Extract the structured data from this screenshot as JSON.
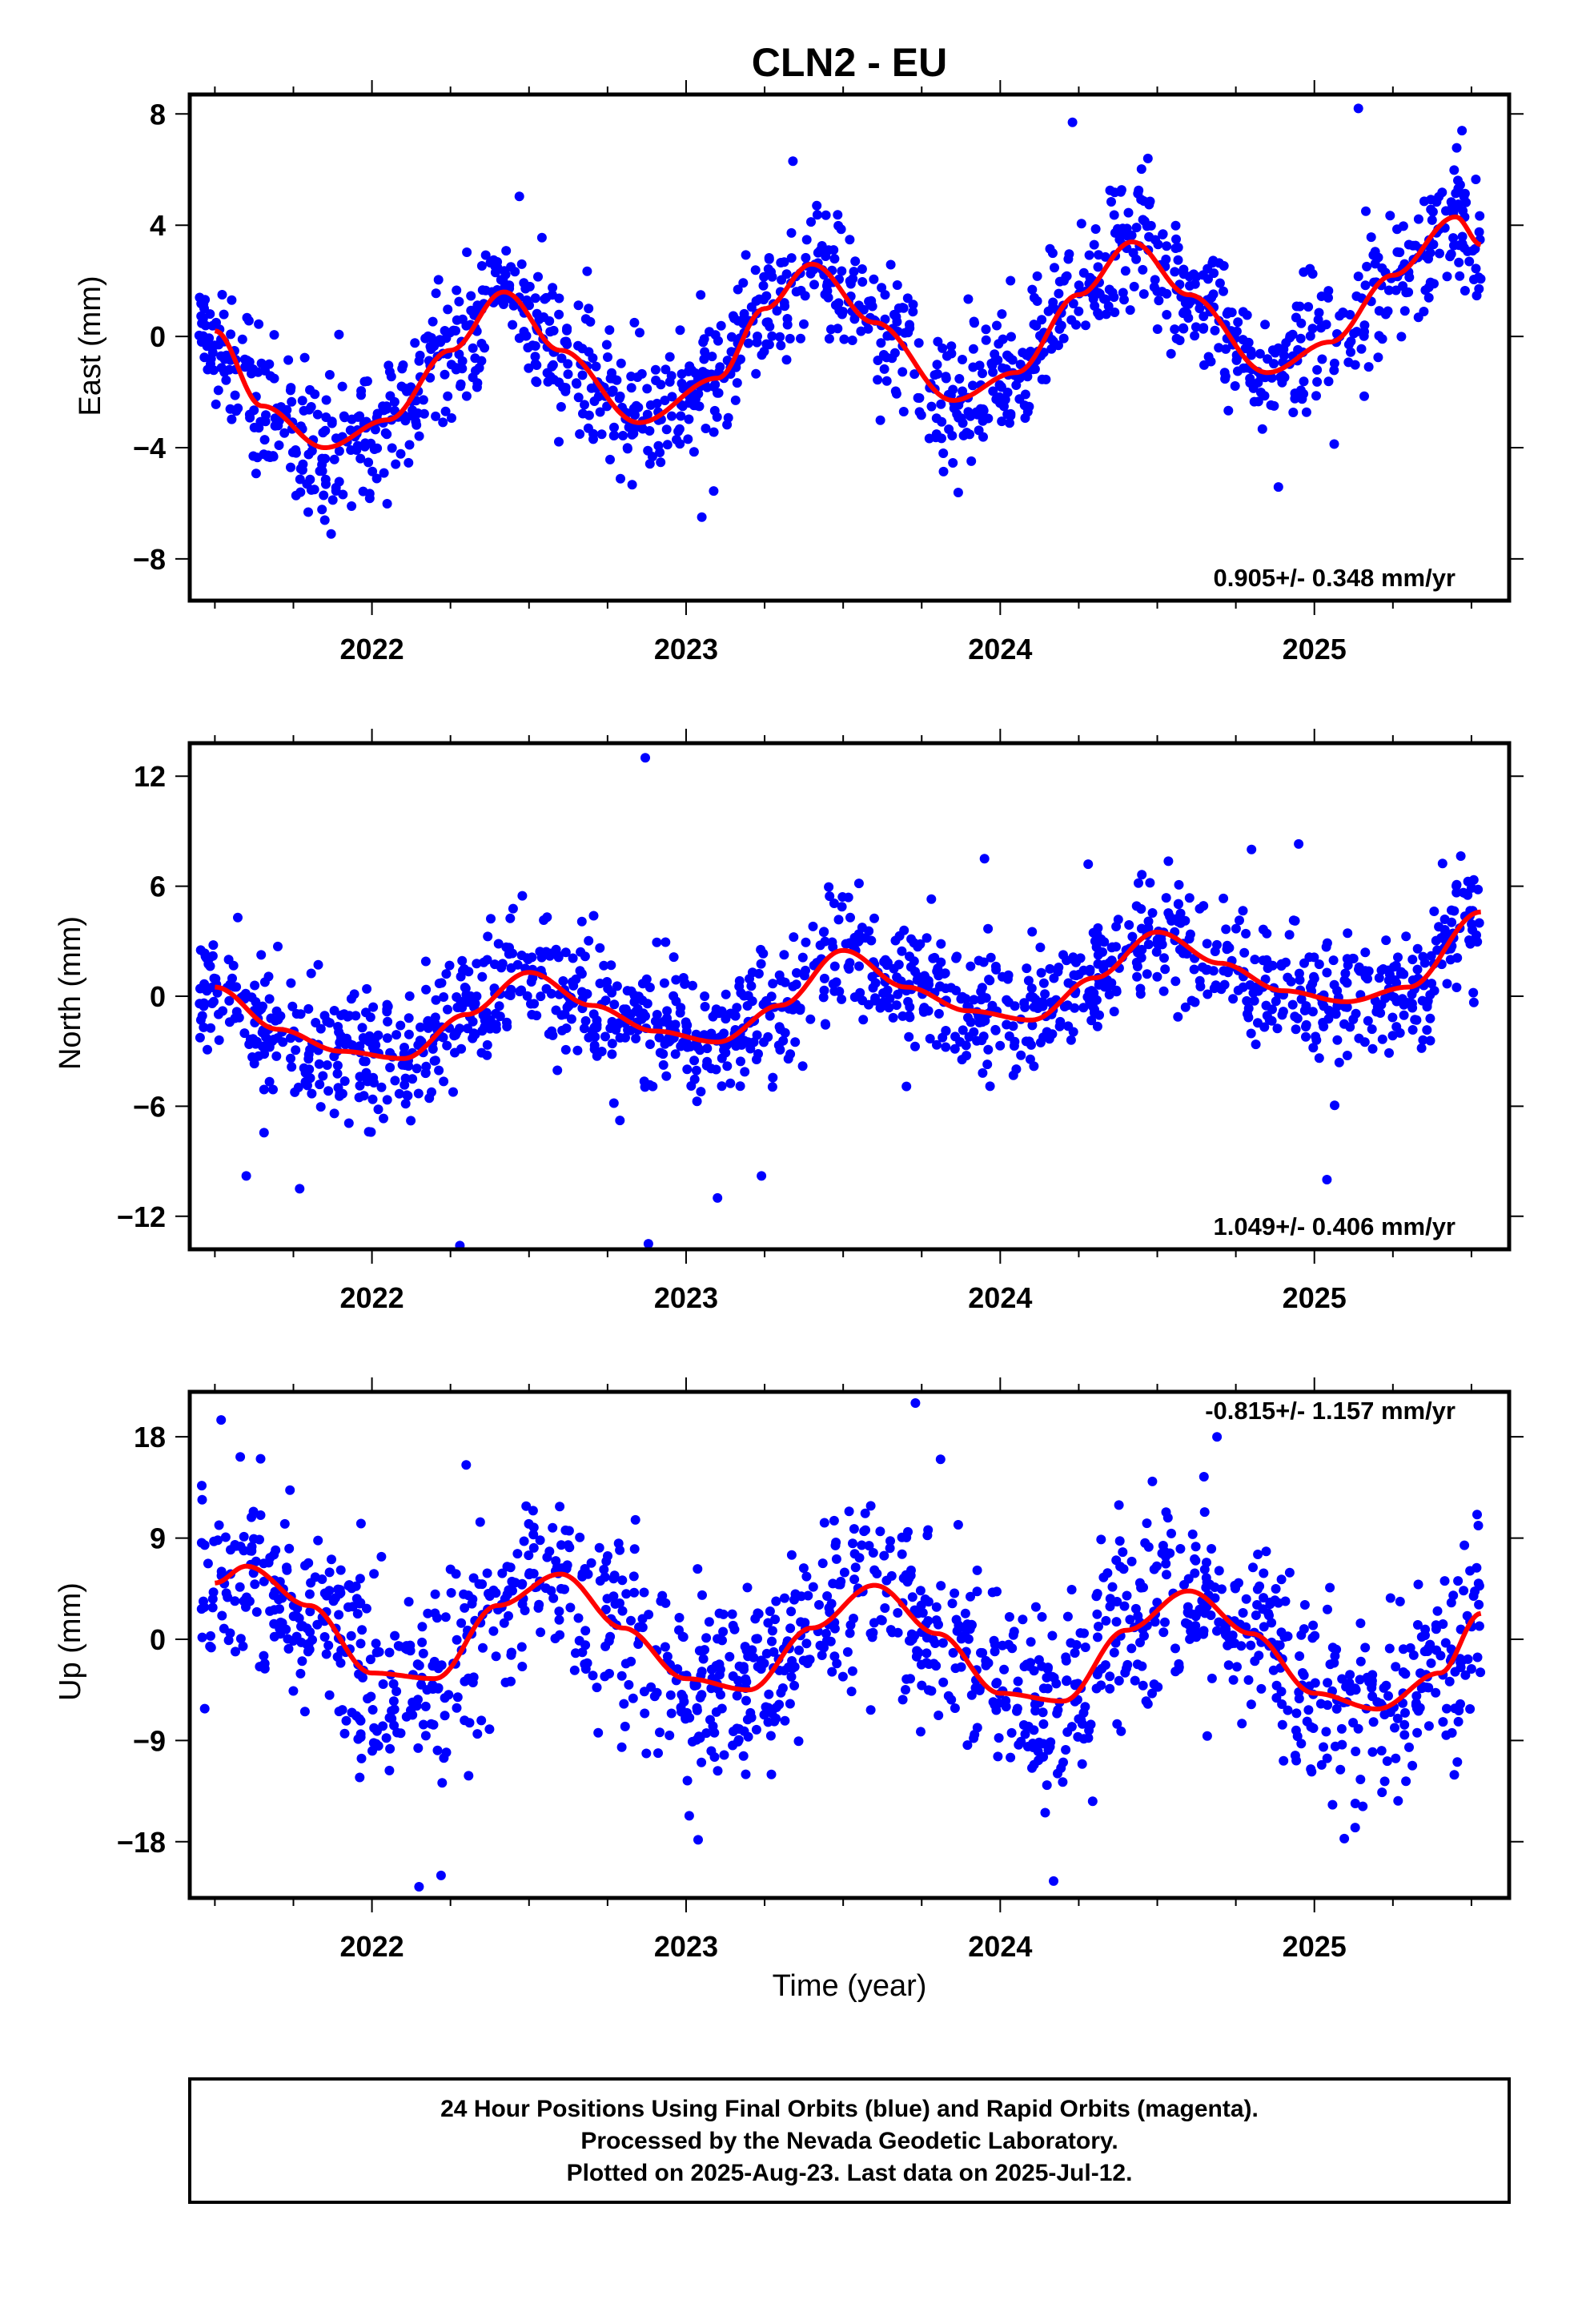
{
  "figure": {
    "title": "CLN2 - EU",
    "footer_lines": [
      "24 Hour Positions Using Final Orbits (blue) and Rapid Orbits (magenta).",
      "Processed by the Nevada Geodetic Laboratory.",
      "Plotted on 2025-Aug-23. Last data on 2025-Jul-12."
    ]
  },
  "colors": {
    "points": "#0000ff",
    "fit": "#ff0000",
    "frame": "#000000"
  },
  "chart_data": [
    {
      "type": "scatter",
      "ylabel": "East (mm)",
      "xlabel": "",
      "xlim": [
        2021.42,
        2025.62
      ],
      "ylim": [
        -9.5,
        8.7
      ],
      "xticks": [
        2022,
        2023,
        2024,
        2025
      ],
      "xtick_labels": [
        "2022",
        "2023",
        "2024",
        "2025"
      ],
      "yticks": [
        -8,
        -4,
        0,
        4,
        8
      ],
      "ytick_labels": [
        "−8",
        "−4",
        "0",
        "4",
        "8"
      ],
      "rate_text": "0.905+/- 0.348 mm/yr",
      "rate_position": "bottom-right",
      "fit": {
        "x": [
          2021.5,
          2021.65,
          2021.85,
          2022.05,
          2022.25,
          2022.42,
          2022.6,
          2022.85,
          2023.1,
          2023.25,
          2023.4,
          2023.6,
          2023.85,
          2024.05,
          2024.25,
          2024.42,
          2024.6,
          2024.85,
          2025.05,
          2025.25,
          2025.45,
          2025.53
        ],
        "y": [
          0.2,
          -2.5,
          -4.0,
          -3.0,
          -0.5,
          1.6,
          -0.5,
          -3.1,
          -1.5,
          1.0,
          2.6,
          0.5,
          -2.3,
          -1.3,
          1.5,
          3.4,
          1.5,
          -1.3,
          -0.2,
          2.2,
          4.3,
          3.3
        ]
      },
      "points": {
        "n": 1350,
        "x_range": [
          2021.45,
          2025.53
        ],
        "scatter_sd": 1.2,
        "outliers": [
          {
            "x": 2025.14,
            "y": 8.2
          },
          {
            "x": 2024.23,
            "y": 7.7
          },
          {
            "x": 2023.34,
            "y": 6.3
          },
          {
            "x": 2023.05,
            "y": -6.5
          },
          {
            "x": 2021.87,
            "y": -7.1
          },
          {
            "x": 2024.47,
            "y": 6.4
          },
          {
            "x": 2025.47,
            "y": 7.4
          }
        ]
      }
    },
    {
      "type": "scatter",
      "ylabel": "North (mm)",
      "xlabel": "",
      "xlim": [
        2021.42,
        2025.62
      ],
      "ylim": [
        -13.8,
        13.8
      ],
      "xticks": [
        2022,
        2023,
        2024,
        2025
      ],
      "xtick_labels": [
        "2022",
        "2023",
        "2024",
        "2025"
      ],
      "yticks": [
        -12,
        -6,
        0,
        6,
        12
      ],
      "ytick_labels": [
        "−12",
        "−6",
        "0",
        "6",
        "12"
      ],
      "rate_text": "1.049+/- 0.406 mm/yr",
      "rate_position": "bottom-right",
      "fit": {
        "x": [
          2021.5,
          2021.7,
          2021.9,
          2022.1,
          2022.3,
          2022.5,
          2022.7,
          2022.9,
          2023.1,
          2023.3,
          2023.5,
          2023.7,
          2023.9,
          2024.1,
          2024.3,
          2024.5,
          2024.7,
          2024.9,
          2025.1,
          2025.3,
          2025.53
        ],
        "y": [
          0.5,
          -1.8,
          -3.0,
          -3.4,
          -1.0,
          1.3,
          -0.5,
          -1.9,
          -2.5,
          -0.5,
          2.5,
          0.5,
          -0.8,
          -1.3,
          1.0,
          3.5,
          1.8,
          0.3,
          -0.3,
          0.5,
          4.6
        ]
      },
      "points": {
        "n": 1350,
        "x_range": [
          2021.45,
          2025.53
        ],
        "scatter_sd": 1.8,
        "outliers": [
          {
            "x": 2022.87,
            "y": 13.0
          },
          {
            "x": 2022.28,
            "y": -13.6
          },
          {
            "x": 2022.88,
            "y": -13.5
          },
          {
            "x": 2023.1,
            "y": -11.0
          },
          {
            "x": 2023.24,
            "y": -9.8
          },
          {
            "x": 2021.77,
            "y": -10.5
          },
          {
            "x": 2025.04,
            "y": -10.0
          },
          {
            "x": 2024.8,
            "y": 8.0
          },
          {
            "x": 2023.95,
            "y": 7.5
          },
          {
            "x": 2024.28,
            "y": 7.2
          },
          {
            "x": 2024.95,
            "y": 8.3
          },
          {
            "x": 2021.6,
            "y": -9.8
          }
        ]
      }
    },
    {
      "type": "scatter",
      "ylabel": "Up (mm)",
      "xlabel": "Time (year)",
      "xlim": [
        2021.42,
        2025.62
      ],
      "ylim": [
        -23.0,
        22.0
      ],
      "xticks": [
        2022,
        2023,
        2024,
        2025
      ],
      "xtick_labels": [
        "2022",
        "2023",
        "2024",
        "2025"
      ],
      "yticks": [
        -18,
        -9,
        0,
        9,
        18
      ],
      "ytick_labels": [
        "−18",
        "−9",
        "0",
        "9",
        "18"
      ],
      "rate_text": "-0.815+/- 1.157 mm/yr",
      "rate_position": "top-right",
      "fit": {
        "x": [
          2021.5,
          2021.6,
          2021.8,
          2022.0,
          2022.2,
          2022.4,
          2022.6,
          2022.8,
          2023.0,
          2023.2,
          2023.4,
          2023.6,
          2023.8,
          2024.0,
          2024.2,
          2024.4,
          2024.6,
          2024.8,
          2025.0,
          2025.2,
          2025.4,
          2025.53
        ],
        "y": [
          5.0,
          6.5,
          3.0,
          -3.0,
          -3.5,
          3.0,
          5.8,
          1.0,
          -3.5,
          -4.5,
          1.0,
          4.8,
          0.5,
          -4.8,
          -5.5,
          0.8,
          4.3,
          0.5,
          -4.8,
          -6.2,
          -3.0,
          2.3
        ]
      },
      "points": {
        "n": 1350,
        "x_range": [
          2021.45,
          2025.53
        ],
        "scatter_sd": 4.3,
        "outliers": [
          {
            "x": 2021.52,
            "y": 19.5
          },
          {
            "x": 2023.73,
            "y": 21.0
          },
          {
            "x": 2024.69,
            "y": 18.0
          },
          {
            "x": 2022.15,
            "y": -22.0
          },
          {
            "x": 2022.22,
            "y": -21.0
          },
          {
            "x": 2024.17,
            "y": -21.5
          },
          {
            "x": 2023.81,
            "y": 16.0
          },
          {
            "x": 2022.3,
            "y": 15.5
          }
        ]
      }
    }
  ]
}
